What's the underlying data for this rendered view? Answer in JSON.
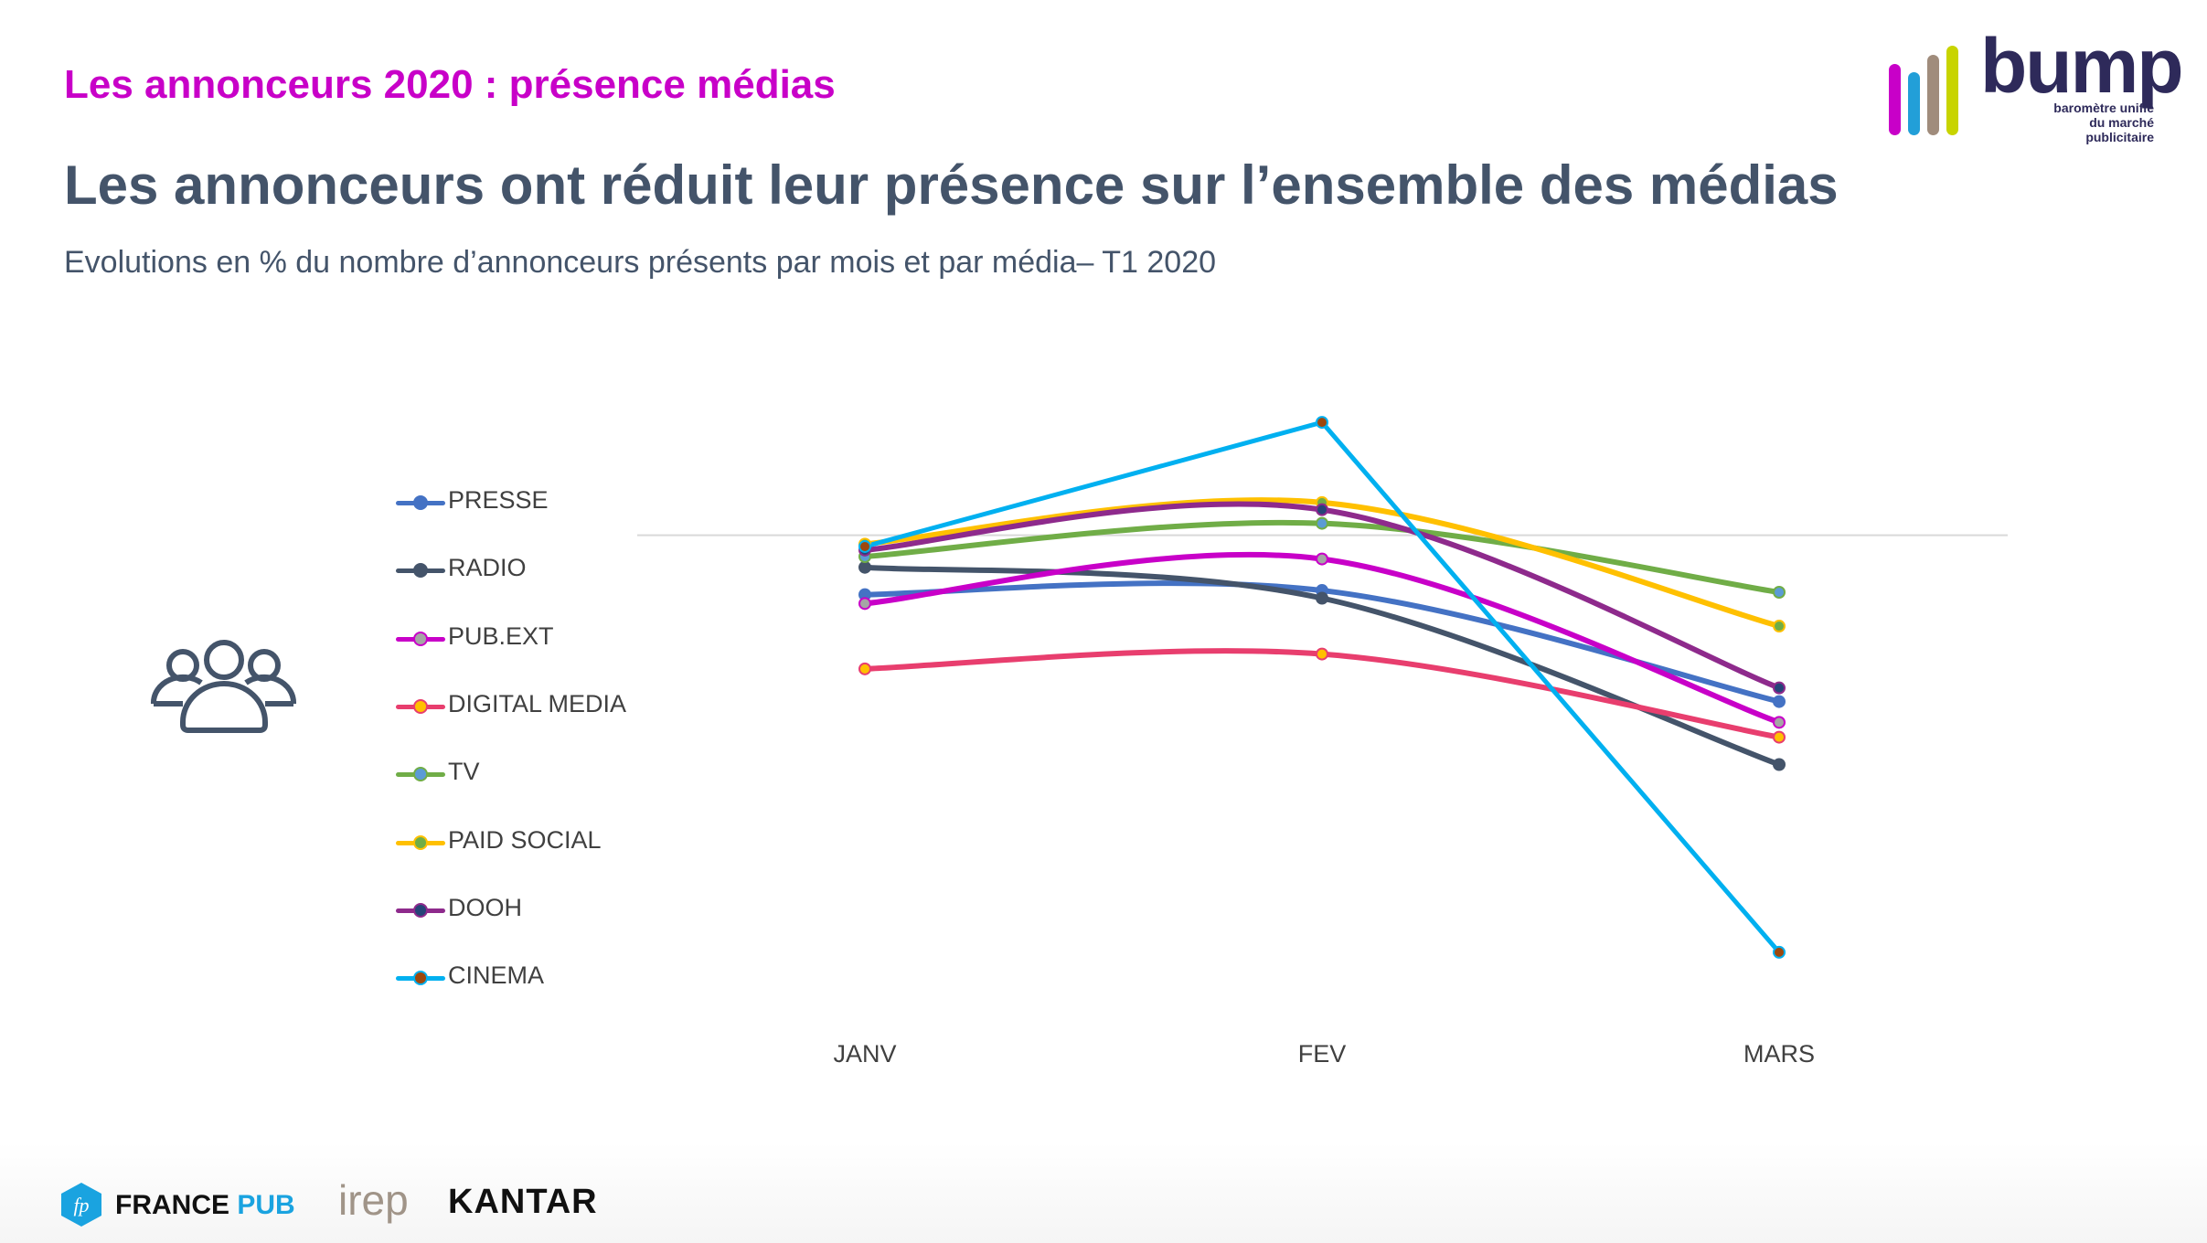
{
  "header": {
    "kicker": "Les annonceurs 2020 : présence médias",
    "title": "Les annonceurs ont réduit leur présence sur l’ensemble des médias",
    "subtitle": "Evolutions en % du nombre d’annonceurs présents par mois et par média– T1 2020"
  },
  "logo": {
    "word": "bump",
    "tagline_1": "baromètre unifié",
    "tagline_2": "du marché publicitaire",
    "bar_colors": [
      "#c800c8",
      "#229fd8",
      "#a08c7c",
      "#c8d400"
    ]
  },
  "icon": "people-group-icon",
  "footer": {
    "francepub_1": "FRANCE ",
    "francepub_2": "PUB",
    "irep": "irep",
    "kantar": "KANTAR"
  },
  "chart_data": {
    "type": "line",
    "title": "",
    "xlabel": "",
    "ylabel": "",
    "categories": [
      "JANV",
      "FEV",
      "MARS"
    ],
    "note": "No y-axis labels shown; values estimated as relative % change vs zero reference line",
    "zero_line": true,
    "ylim": [
      -75,
      25
    ],
    "grid": false,
    "legend_position": "left",
    "series": [
      {
        "name": "PRESSE",
        "line_color": "#4472c4",
        "marker_fill": "#4472c4",
        "marker_edge": "#4472c4",
        "values": [
          -10.0,
          -9.3,
          -28.0
        ]
      },
      {
        "name": "RADIO",
        "line_color": "#44546a",
        "marker_fill": "#44546a",
        "marker_edge": "#44546a",
        "values": [
          -5.4,
          -10.6,
          -38.6
        ]
      },
      {
        "name": "PUB.EXT",
        "line_color": "#c800c8",
        "marker_fill": "#a5a5a5",
        "marker_edge": "#c800c8",
        "values": [
          -11.5,
          -4.0,
          -31.5
        ]
      },
      {
        "name": "DIGITAL MEDIA",
        "line_color": "#e83e6e",
        "marker_fill": "#ffc000",
        "marker_edge": "#e83e6e",
        "values": [
          -22.5,
          -20.0,
          -34.0
        ]
      },
      {
        "name": "TV",
        "line_color": "#70ad47",
        "marker_fill": "#5b9bd5",
        "marker_edge": "#70ad47",
        "values": [
          -3.6,
          2.0,
          -9.6
        ]
      },
      {
        "name": "PAID SOCIAL",
        "line_color": "#ffc000",
        "marker_fill": "#70ad47",
        "marker_edge": "#ffc000",
        "values": [
          -1.5,
          5.5,
          -15.3
        ]
      },
      {
        "name": "DOOH",
        "line_color": "#8e2a8c",
        "marker_fill": "#264478",
        "marker_edge": "#8e2a8c",
        "values": [
          -2.5,
          4.3,
          -25.7
        ]
      },
      {
        "name": "CINEMA",
        "line_color": "#00b0f0",
        "marker_fill": "#9e480e",
        "marker_edge": "#00b0f0",
        "values": [
          -1.9,
          19.0,
          -70.2
        ],
        "straight": true
      }
    ]
  }
}
